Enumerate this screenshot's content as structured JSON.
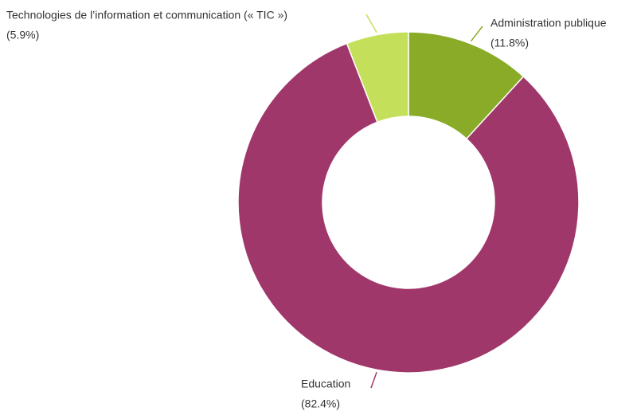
{
  "chart_data": {
    "type": "donut",
    "categories": [
      "Administration publique",
      "Education",
      "Technologies de l’information et communication (« TIC »)"
    ],
    "values": [
      11.8,
      82.4,
      5.9
    ],
    "value_labels": [
      "(11.8%)",
      "(82.4%)",
      "(5.9%)"
    ],
    "colors": [
      "#8aab28",
      "#a0376a",
      "#c4e05a"
    ]
  }
}
